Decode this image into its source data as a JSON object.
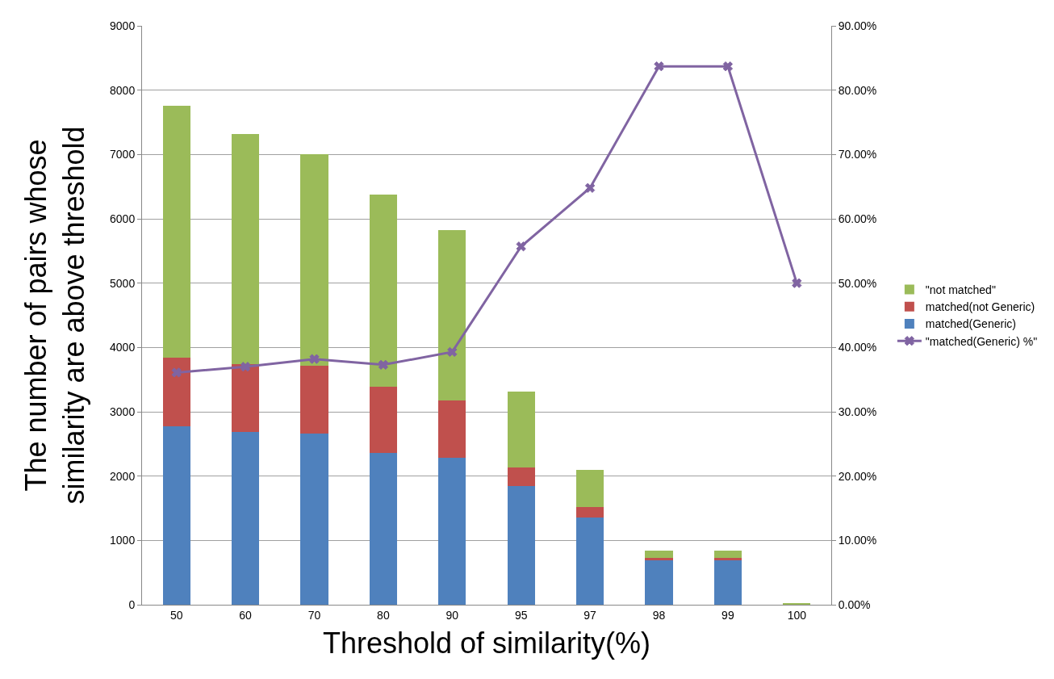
{
  "chart_data": {
    "type": "bar",
    "stacked": true,
    "xlabel": "Threshold of similarity(%)",
    "ylabel": "The number of pairs whose\nsimilarity are above threshold",
    "categories": [
      "50",
      "60",
      "70",
      "80",
      "90",
      "95",
      "97",
      "98",
      "99",
      "100"
    ],
    "series": [
      {
        "name": "matched(Generic)",
        "color": "#4f81bd",
        "values": [
          2780,
          2690,
          2660,
          2360,
          2280,
          1840,
          1350,
          700,
          700,
          10
        ]
      },
      {
        "name": "matched(not Generic)",
        "color": "#c0504d",
        "values": [
          1060,
          1050,
          1050,
          1030,
          900,
          300,
          170,
          25,
          25,
          0
        ]
      },
      {
        "name": "\"not matched\"",
        "color": "#9bbb59",
        "values": [
          3920,
          3580,
          3290,
          2990,
          2650,
          1180,
          580,
          120,
          120,
          10
        ]
      },
      {
        "name": "\"matched(Generic) %\"",
        "color": "#8064a2",
        "type": "line",
        "axis": "y2",
        "marker": "cross",
        "values": [
          36.1,
          37.0,
          38.2,
          37.3,
          39.3,
          55.7,
          64.8,
          83.7,
          83.7,
          50.0
        ]
      }
    ],
    "ylim": [
      0,
      9000
    ],
    "yticks": [
      0,
      1000,
      2000,
      3000,
      4000,
      5000,
      6000,
      7000,
      8000,
      9000
    ],
    "y2lim": [
      0,
      90
    ],
    "y2ticks": [
      {
        "value": 0,
        "label": "0.00%"
      },
      {
        "value": 10,
        "label": "10.00%"
      },
      {
        "value": 20,
        "label": "20.00%"
      },
      {
        "value": 30,
        "label": "30.00%"
      },
      {
        "value": 40,
        "label": "40.00%"
      },
      {
        "value": 50,
        "label": "50.00%"
      },
      {
        "value": 60,
        "label": "60.00%"
      },
      {
        "value": 70,
        "label": "70.00%"
      },
      {
        "value": 80,
        "label": "80.00%"
      },
      {
        "value": 90,
        "label": "90.00%"
      }
    ],
    "grid": "y",
    "legend": "right"
  }
}
